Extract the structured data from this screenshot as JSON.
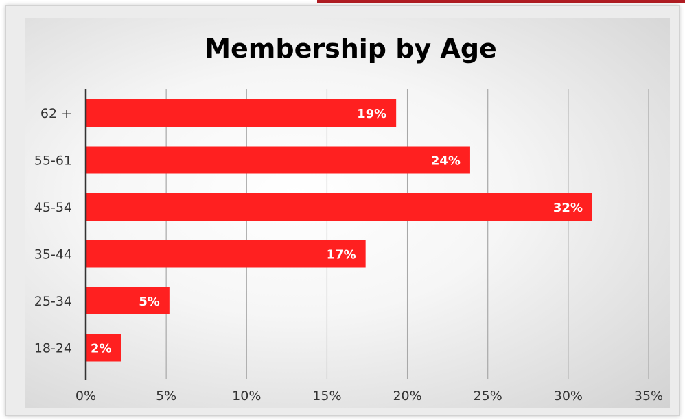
{
  "chart_data": {
    "type": "bar",
    "orientation": "horizontal",
    "title": "Membership by Age",
    "xlabel": "",
    "ylabel": "",
    "categories": [
      "62 +",
      "55-61",
      "45-54",
      "35-44",
      "25-34",
      "18-24"
    ],
    "values": [
      19.3,
      23.9,
      31.5,
      17.4,
      5.2,
      2.2
    ],
    "data_labels": [
      "19%",
      "24%",
      "32%",
      "17%",
      "5%",
      "2%"
    ],
    "xlim": [
      0,
      35
    ],
    "x_ticks": [
      0,
      5,
      10,
      15,
      20,
      25,
      30,
      35
    ],
    "x_tick_labels": [
      "0%",
      "5%",
      "10%",
      "15%",
      "20%",
      "25%",
      "30%",
      "35%"
    ],
    "grid": "vertical",
    "legend": "none",
    "bar_color": "#ff2020"
  }
}
